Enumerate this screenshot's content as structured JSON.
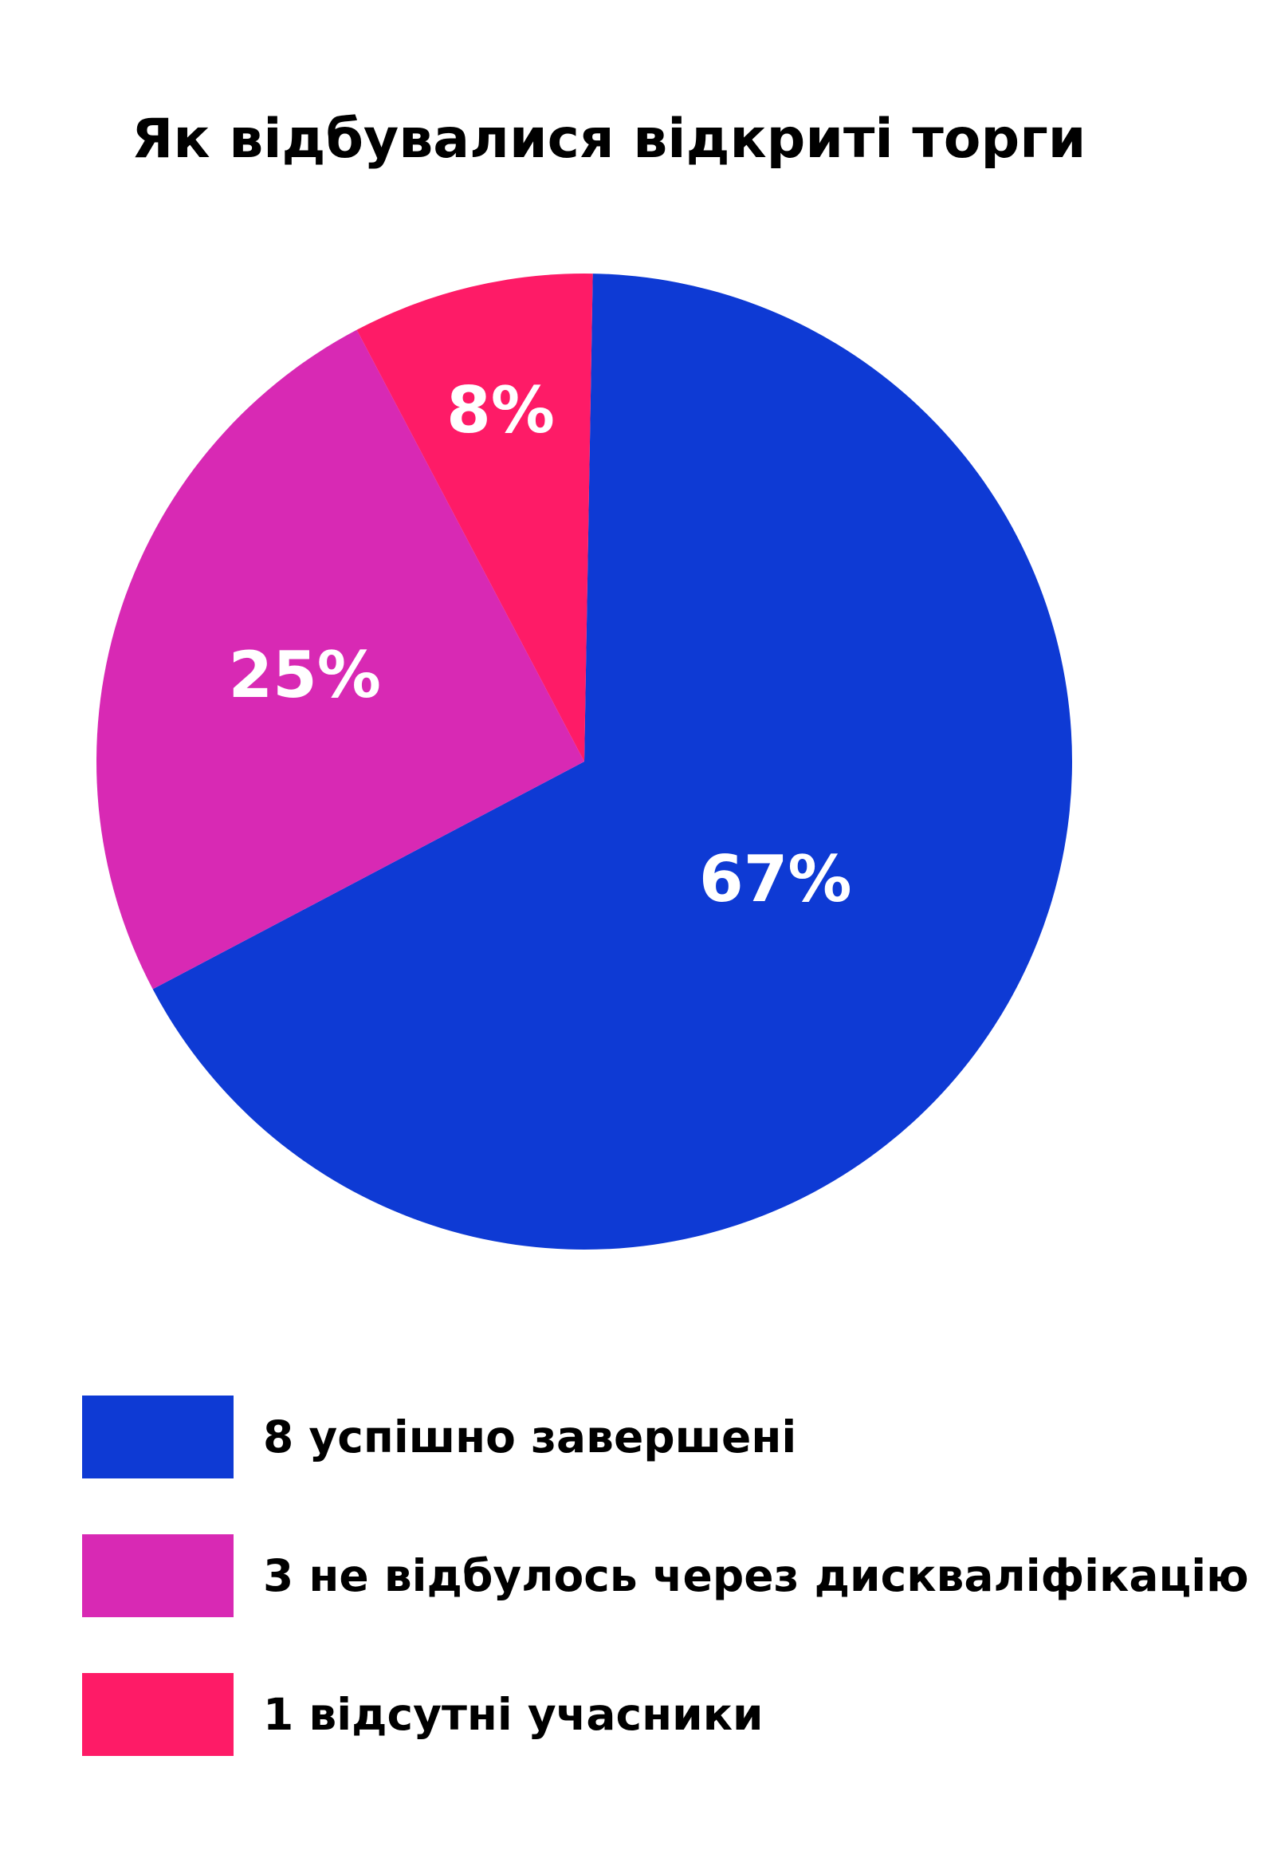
{
  "chart_data": {
    "type": "pie",
    "title": "Як відбувалися відкриті торги",
    "slices": [
      {
        "legend": "8 успішно завершені",
        "value": 67,
        "label": "67%",
        "color": "#0e3ad4"
      },
      {
        "legend": "3 не відбулось через дискваліфікацію",
        "value": 25,
        "label": "25%",
        "color": "#d829b4"
      },
      {
        "legend": "1 відсутні учасники",
        "value": 8,
        "label": "8%",
        "color": "#fe1b67"
      }
    ],
    "start_angle_deg": 1,
    "direction": "clockwise",
    "legend_position": "bottom-left"
  }
}
